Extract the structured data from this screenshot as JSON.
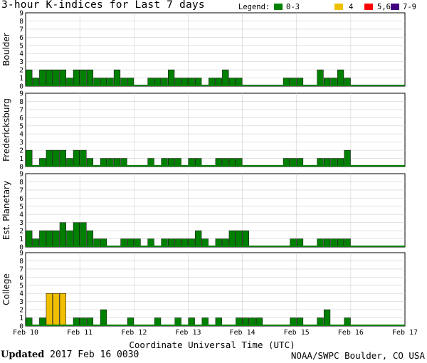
{
  "title": "3-hour K-indices for Last 7 days",
  "legend": {
    "label": "Legend:",
    "items": [
      {
        "label": "0-3",
        "color": "#008000"
      },
      {
        "label": "4",
        "color": "#f0c000"
      },
      {
        "label": "5,6",
        "color": "#ff0000"
      },
      {
        "label": "7-9",
        "color": "#400080"
      }
    ]
  },
  "footer": {
    "updated_label": "Updated",
    "updated_value": "2017 Feb 16 0030",
    "credit": "NOAA/SWPC Boulder, CO USA"
  },
  "chart_data": {
    "type": "bar",
    "xlabel": "Coordinate Universal Time (UTC)",
    "x_ticks": [
      "Feb 10",
      "Feb 11",
      "Feb 12",
      "Feb 13",
      "Feb 14",
      "Feb 15",
      "Feb 16",
      "Feb 17"
    ],
    "ylim": [
      0,
      9
    ],
    "y_ticks": [
      0,
      1,
      2,
      3,
      4,
      5,
      6,
      7,
      8,
      9
    ],
    "thresholds": {
      "green_max": 3,
      "yellow": 4,
      "red_max": 6
    },
    "panels": [
      {
        "name": "Boulder",
        "values": [
          2,
          1,
          2,
          2,
          2,
          2,
          1,
          2,
          2,
          2,
          1,
          1,
          1,
          2,
          1,
          1,
          0,
          0,
          1,
          1,
          1,
          2,
          1,
          1,
          1,
          1,
          0,
          1,
          1,
          2,
          1,
          1,
          0,
          0,
          0,
          0,
          0,
          0,
          1,
          1,
          1,
          0,
          0,
          2,
          1,
          1,
          2,
          1,
          0,
          0,
          0,
          0,
          0,
          0,
          0,
          0
        ]
      },
      {
        "name": "Fredericksburg",
        "values": [
          2,
          0,
          1,
          2,
          2,
          2,
          1,
          2,
          2,
          1,
          0,
          1,
          1,
          1,
          1,
          0,
          0,
          0,
          1,
          0,
          1,
          1,
          1,
          0,
          1,
          1,
          0,
          0,
          1,
          1,
          1,
          1,
          0,
          0,
          0,
          0,
          0,
          0,
          1,
          1,
          1,
          0,
          0,
          1,
          1,
          1,
          1,
          2,
          0,
          0,
          0,
          0,
          0,
          0,
          0,
          0
        ]
      },
      {
        "name": "Est. Planetary",
        "values": [
          2,
          1,
          2,
          2,
          2,
          3,
          2,
          3,
          3,
          2,
          1,
          1,
          0,
          0,
          1,
          1,
          1,
          0,
          1,
          0,
          1,
          1,
          1,
          1,
          1,
          2,
          1,
          0,
          1,
          1,
          2,
          2,
          2,
          0,
          0,
          0,
          0,
          0,
          0,
          1,
          1,
          0,
          0,
          1,
          1,
          1,
          1,
          1,
          0,
          0,
          0,
          0,
          0,
          0,
          0,
          0
        ]
      },
      {
        "name": "College",
        "values": [
          1,
          0,
          1,
          4,
          4,
          4,
          0,
          1,
          1,
          1,
          0,
          2,
          0,
          0,
          0,
          1,
          0,
          0,
          0,
          1,
          0,
          0,
          1,
          0,
          1,
          0,
          1,
          0,
          1,
          0,
          0,
          1,
          1,
          1,
          1,
          0,
          0,
          0,
          0,
          1,
          1,
          0,
          0,
          1,
          2,
          0,
          0,
          1,
          0,
          0,
          0,
          0,
          0,
          0,
          0,
          0
        ]
      }
    ]
  }
}
